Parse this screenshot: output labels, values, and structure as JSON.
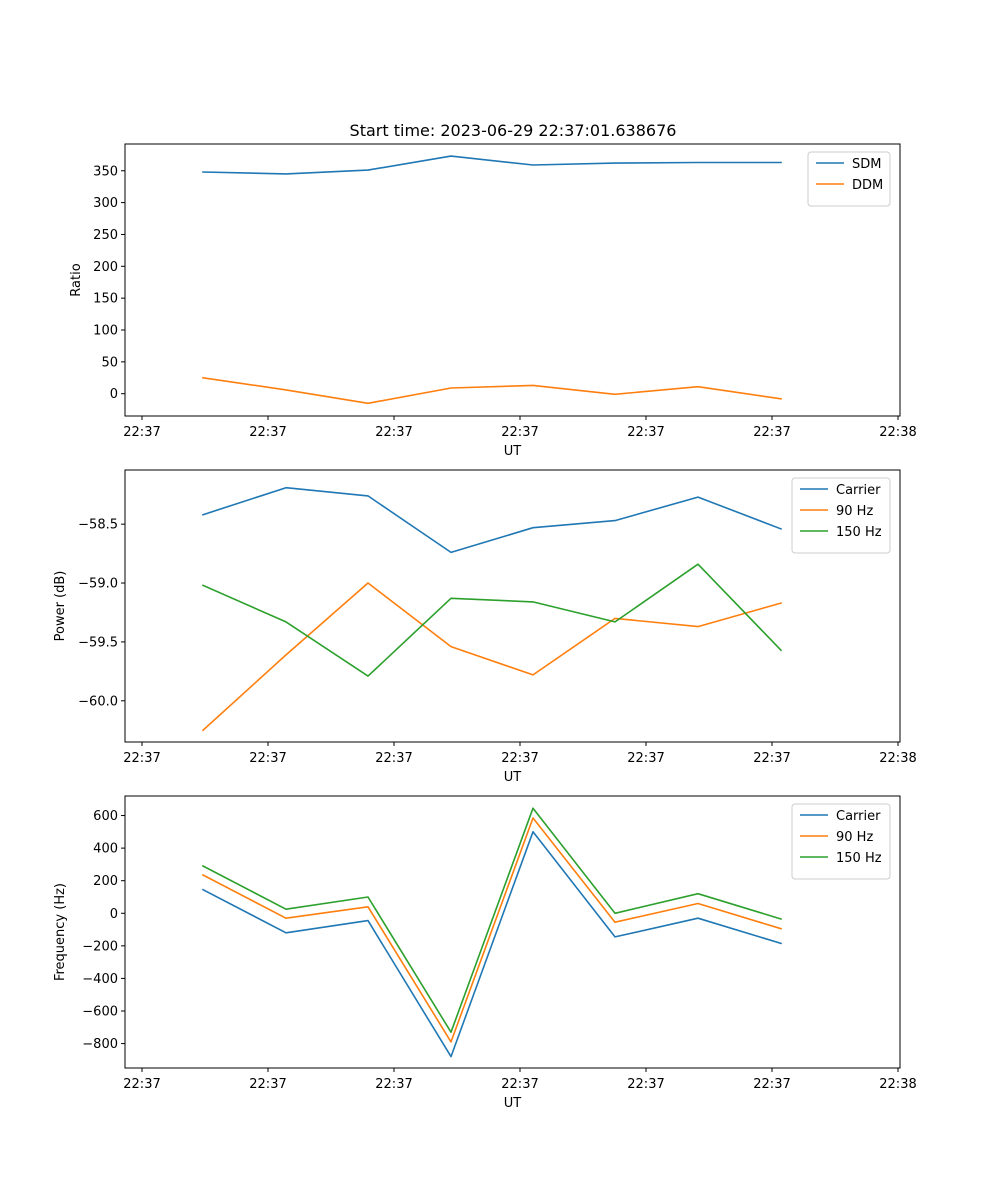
{
  "figure": {
    "title": "Start time: 2023-06-29 22:37:01.638676"
  },
  "colors": {
    "blue": "#1f77b4",
    "orange": "#ff7f0e",
    "green": "#2ca02c",
    "axis": "#000000",
    "legend_border": "#cccccc"
  },
  "chart_data": [
    {
      "type": "line",
      "x": [
        "22:37",
        "22:37",
        "22:37",
        "22:37",
        "22:37",
        "22:37",
        "22:37",
        "22:37"
      ],
      "x_tick_labels": [
        "22:37",
        "22:37",
        "22:37",
        "22:37",
        "22:37",
        "22:37",
        "22:38"
      ],
      "xlabel": "UT",
      "ylabel": "Ratio",
      "ylim": [
        -35,
        392
      ],
      "yticks": [
        0,
        50,
        100,
        150,
        200,
        250,
        300,
        350
      ],
      "ytick_labels": [
        "0",
        "50",
        "100",
        "150",
        "200",
        "250",
        "300",
        "350"
      ],
      "legend_position": "top-right",
      "grid": false,
      "series": [
        {
          "name": "SDM",
          "color": "#1f77b4",
          "values": [
            348,
            345,
            351,
            373,
            359,
            362,
            363,
            363
          ]
        },
        {
          "name": "DDM",
          "color": "#ff7f0e",
          "values": [
            25,
            6,
            -15,
            9,
            13,
            -1,
            11,
            -8
          ]
        }
      ]
    },
    {
      "type": "line",
      "x": [
        "22:37",
        "22:37",
        "22:37",
        "22:37",
        "22:37",
        "22:37",
        "22:37",
        "22:37"
      ],
      "x_tick_labels": [
        "22:37",
        "22:37",
        "22:37",
        "22:37",
        "22:37",
        "22:37",
        "22:38"
      ],
      "xlabel": "UT",
      "ylabel": "Power (dB)",
      "ylim": [
        -60.35,
        -58.04
      ],
      "yticks": [
        -60.0,
        -59.5,
        -59.0,
        -58.5
      ],
      "ytick_labels": [
        "−60.0",
        "−59.5",
        "−59.0",
        "−58.5"
      ],
      "legend_position": "top-right",
      "grid": false,
      "series": [
        {
          "name": "Carrier",
          "color": "#1f77b4",
          "values": [
            -58.42,
            -58.19,
            -58.26,
            -58.74,
            -58.53,
            -58.47,
            -58.27,
            -58.54
          ]
        },
        {
          "name": "90 Hz",
          "color": "#ff7f0e",
          "values": [
            -60.25,
            -59.61,
            -59.0,
            -59.54,
            -59.78,
            -59.3,
            -59.37,
            -59.17
          ]
        },
        {
          "name": "150 Hz",
          "color": "#2ca02c",
          "values": [
            -59.02,
            -59.33,
            -59.79,
            -59.13,
            -59.16,
            -59.33,
            -58.84,
            -59.57
          ]
        }
      ]
    },
    {
      "type": "line",
      "x": [
        "22:37",
        "22:37",
        "22:37",
        "22:37",
        "22:37",
        "22:37",
        "22:37",
        "22:37"
      ],
      "x_tick_labels": [
        "22:37",
        "22:37",
        "22:37",
        "22:37",
        "22:37",
        "22:37",
        "22:38"
      ],
      "xlabel": "UT",
      "ylabel": "Frequency (Hz)",
      "ylim": [
        -950,
        720
      ],
      "yticks": [
        -800,
        -600,
        -400,
        -200,
        0,
        200,
        400,
        600
      ],
      "ytick_labels": [
        "−800",
        "−600",
        "−400",
        "−200",
        "0",
        "200",
        "400",
        "600"
      ],
      "legend_position": "top-right",
      "grid": false,
      "series": [
        {
          "name": "Carrier",
          "color": "#1f77b4",
          "values": [
            145,
            -120,
            -45,
            -880,
            500,
            -145,
            -30,
            -185
          ]
        },
        {
          "name": "90 Hz",
          "color": "#ff7f0e",
          "values": [
            235,
            -30,
            40,
            -790,
            585,
            -55,
            60,
            -95
          ]
        },
        {
          "name": "150 Hz",
          "color": "#2ca02c",
          "values": [
            290,
            25,
            100,
            -730,
            645,
            0,
            120,
            -35
          ]
        }
      ]
    }
  ]
}
